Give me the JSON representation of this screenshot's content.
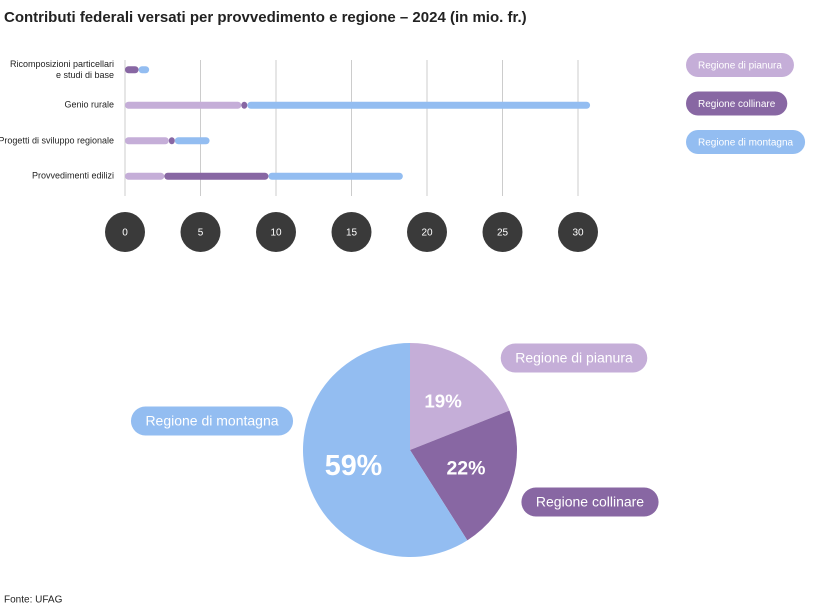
{
  "chart_data": [
    {
      "type": "bar",
      "orientation": "horizontal",
      "stacked": true,
      "title": "Contributi federali versati per provvedimento e regione – 2024 (in mio. fr.)",
      "categories": [
        "Ricomposizioni particellari\ne studi di base",
        "Genio rurale",
        "Progetti di sviluppo regionale",
        "Provvedimenti edilizi"
      ],
      "series": [
        {
          "name": "Regione di pianura",
          "color": "#c5aed8",
          "values": [
            0,
            7.7,
            2.9,
            2.6
          ]
        },
        {
          "name": "Regione collinare",
          "color": "#8867a3",
          "values": [
            0.9,
            0.4,
            0.4,
            6.9
          ]
        },
        {
          "name": "Regione di montagna",
          "color": "#93bdf1",
          "values": [
            0.7,
            22.7,
            2.3,
            8.9
          ]
        }
      ],
      "xlim": [
        0,
        32
      ],
      "xticks": [
        0,
        5,
        10,
        15,
        20,
        25,
        30
      ],
      "grid": true
    },
    {
      "type": "pie",
      "categories": [
        "Regione di pianura",
        "Regione collinare",
        "Regione di montagna"
      ],
      "colors": [
        "#c5aed8",
        "#8867a3",
        "#93bdf1"
      ],
      "values": [
        19,
        22,
        59
      ],
      "value_labels": [
        "19%",
        "22%",
        "59%"
      ]
    }
  ],
  "source": "Fonte: UFAG"
}
